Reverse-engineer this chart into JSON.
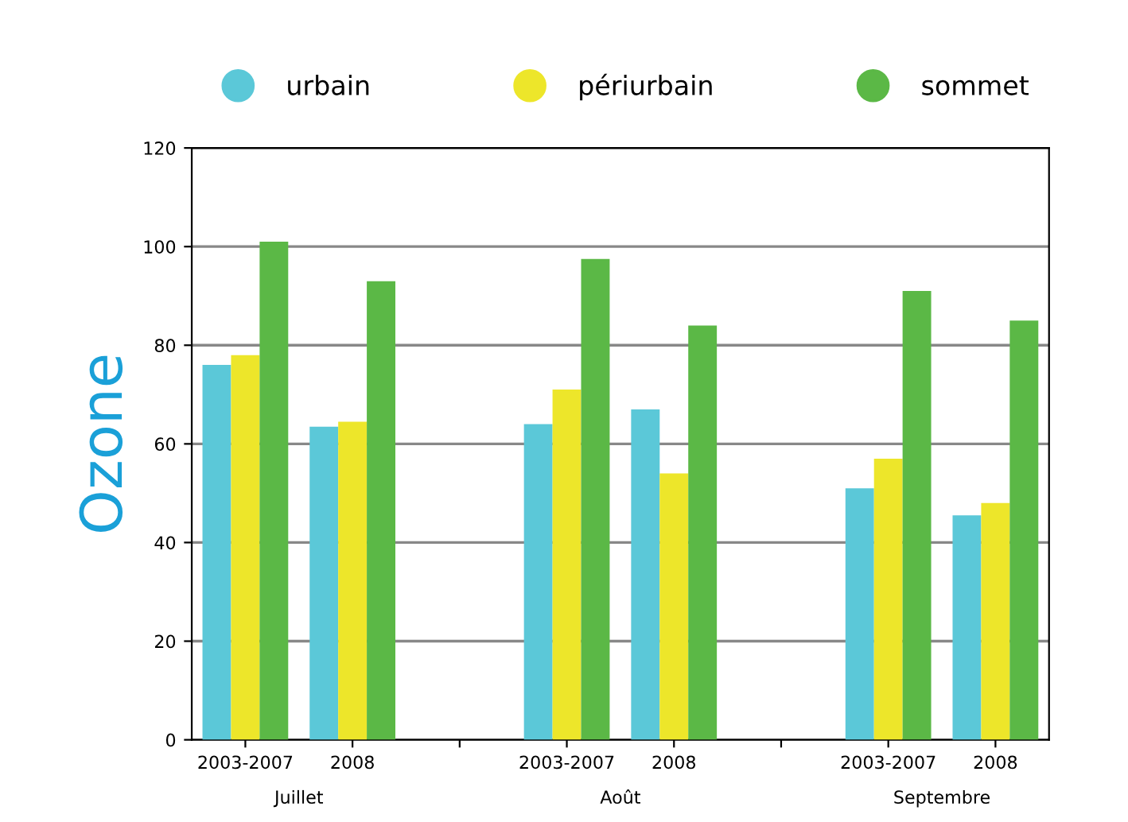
{
  "chart_data": {
    "type": "bar",
    "ylabel": "Ozone",
    "categories": [
      "2003-2007",
      "2008",
      null,
      "2003-2007",
      "2008",
      null,
      "2003-2007",
      "2008"
    ],
    "series": [
      {
        "name": "urbain",
        "color": "#5bc8d8",
        "values": [
          76,
          63.5,
          null,
          64,
          67,
          null,
          51,
          45.5
        ]
      },
      {
        "name": "périurbain",
        "color": "#ede62a",
        "values": [
          78,
          64.5,
          null,
          71,
          54,
          null,
          57,
          48
        ]
      },
      {
        "name": "sommet",
        "color": "#5bb846",
        "values": [
          101,
          93,
          null,
          97.5,
          84,
          null,
          91,
          85
        ]
      }
    ],
    "annotations": [
      "Juillet",
      "Août",
      "Septembre"
    ],
    "ylim": [
      0,
      120
    ],
    "yticks": [
      0,
      20,
      40,
      60,
      80,
      100,
      120
    ],
    "grid": "y",
    "legend": "top"
  }
}
